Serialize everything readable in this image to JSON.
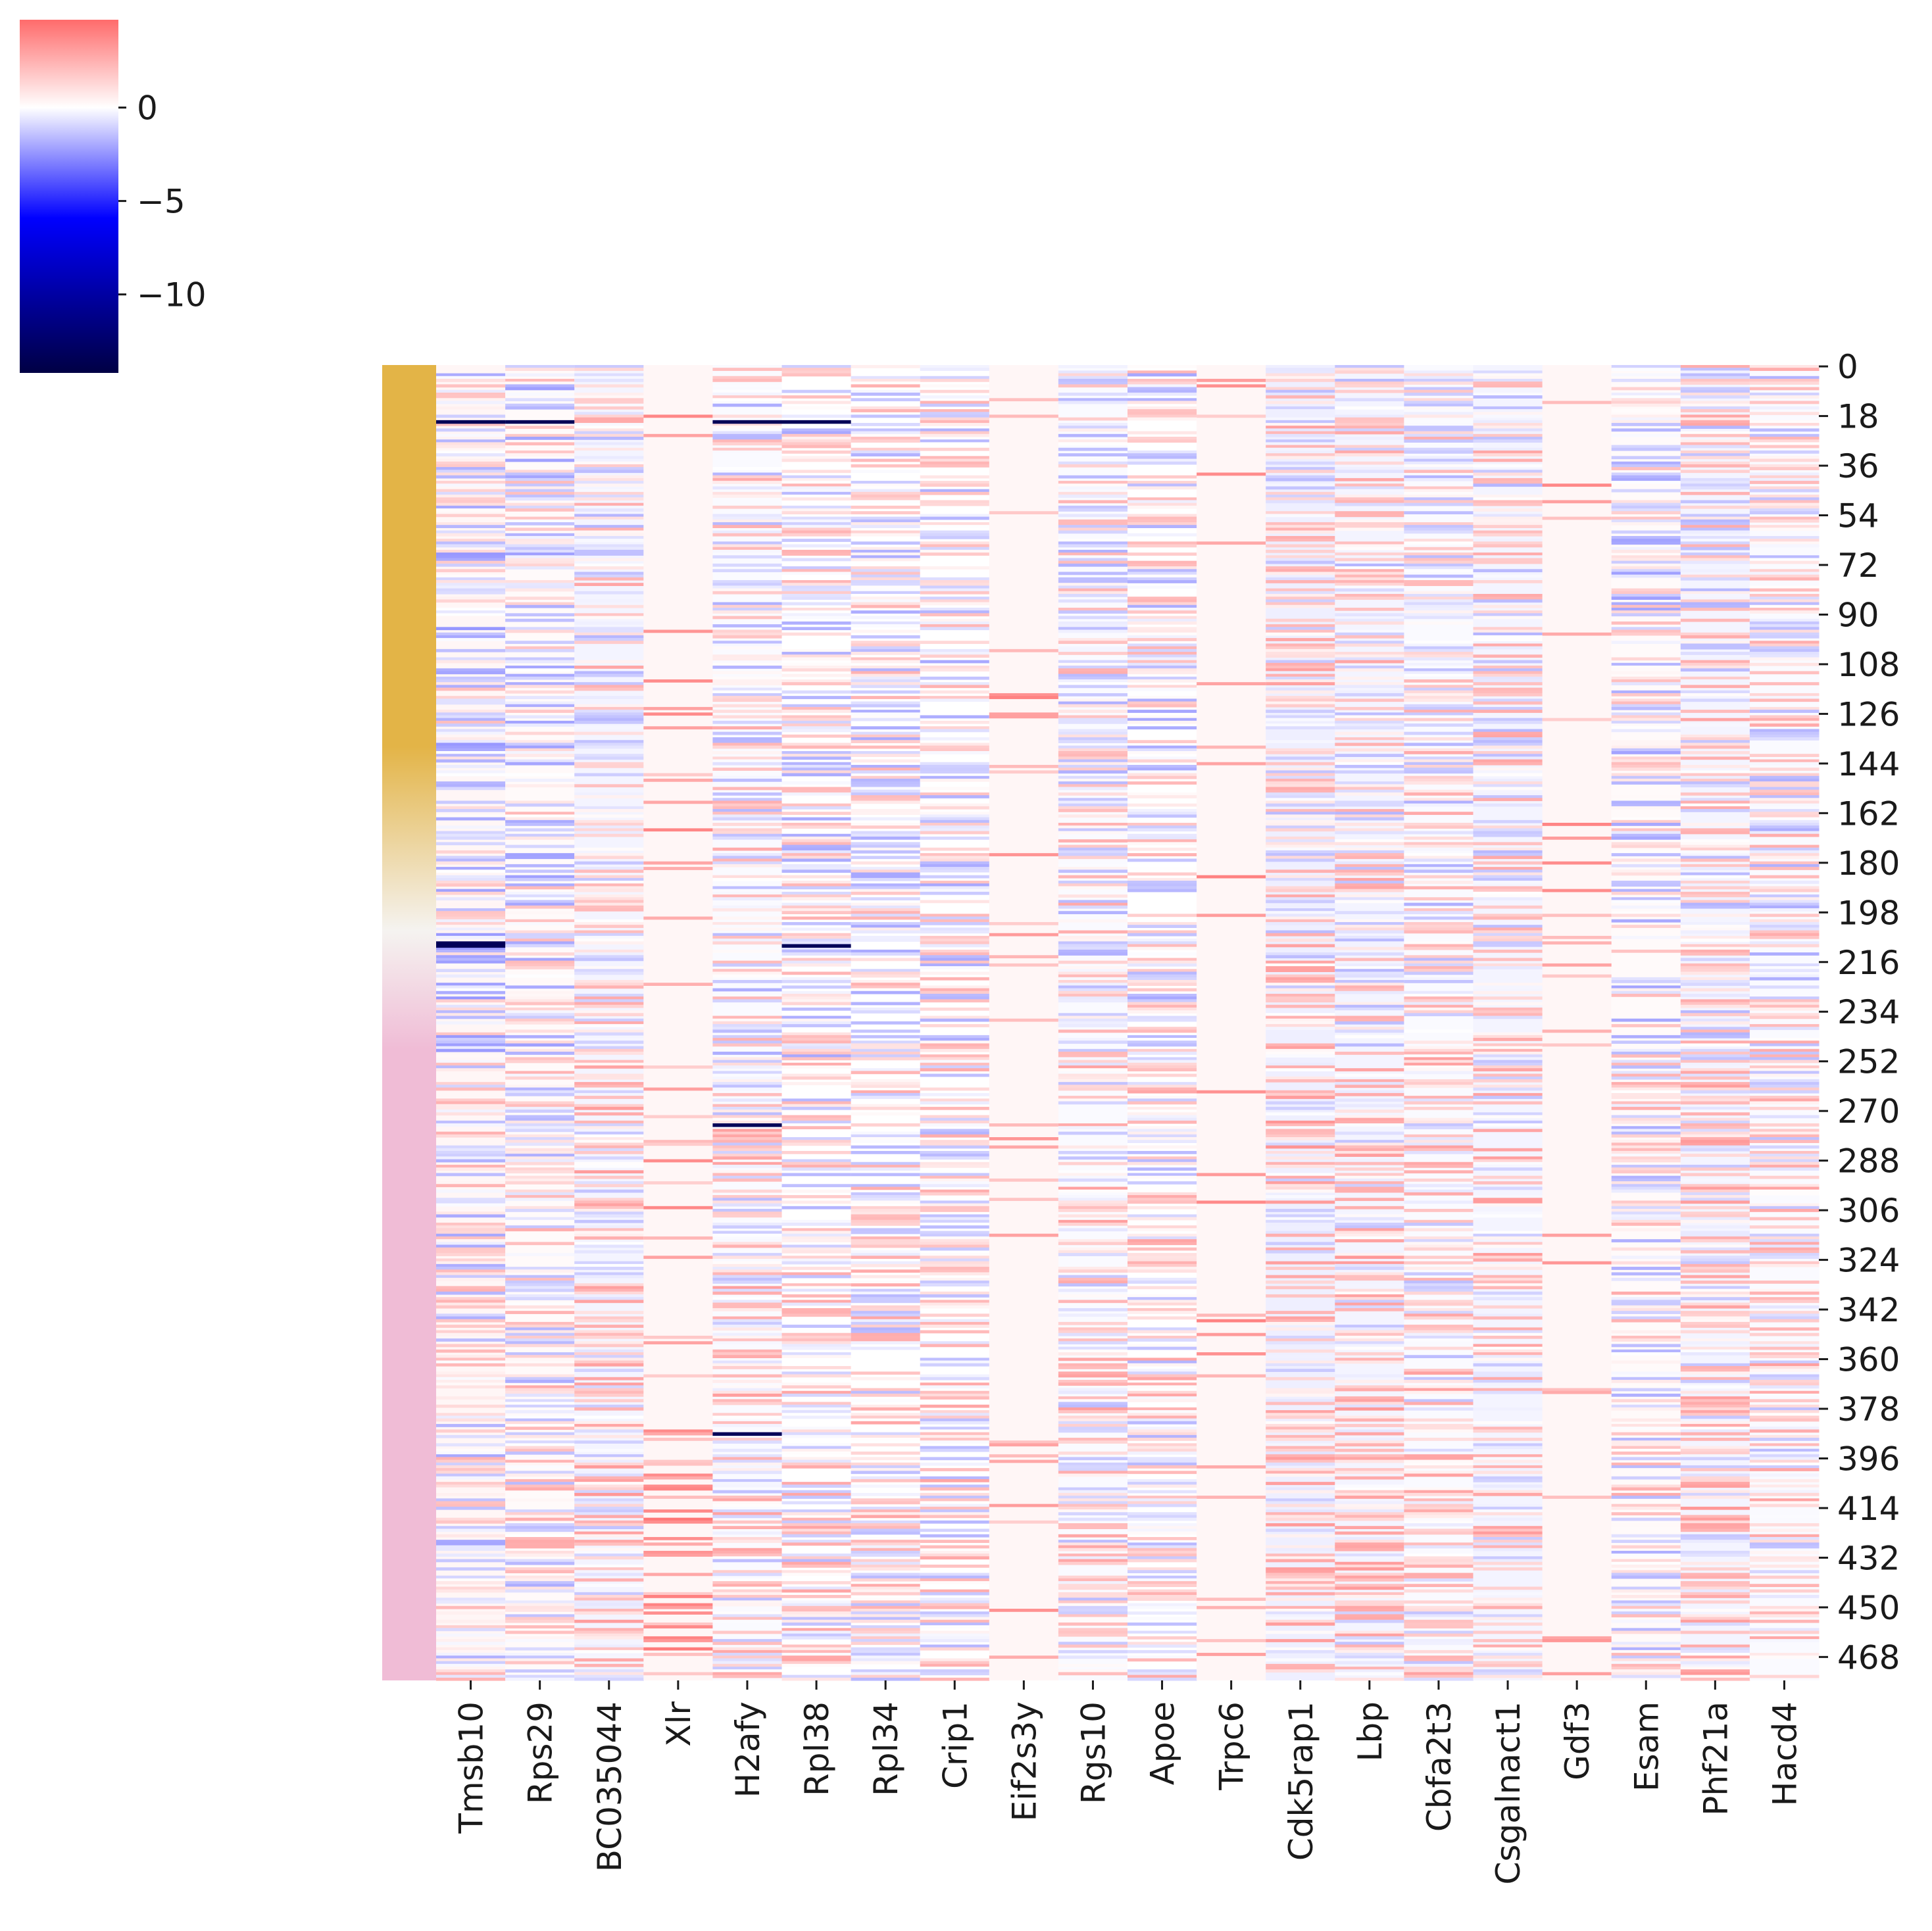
{
  "chart_data": {
    "type": "heatmap",
    "title": "",
    "xlabel": "",
    "ylabel": "",
    "columns": [
      "Tmsb10",
      "Rps29",
      "BC035044",
      "Xlr",
      "H2afy",
      "Rpl38",
      "Rpl34",
      "Crip1",
      "Eif2s3y",
      "Rgs10",
      "Apoe",
      "Trpc6",
      "Cdk5rap1",
      "Lbp",
      "Cbfa2t3",
      "Csgalnact1",
      "Gdf3",
      "Esam",
      "Phf21a",
      "Hacd4"
    ],
    "row_count": 477,
    "row_ticks": [
      "0",
      "18",
      "36",
      "54",
      "72",
      "90",
      "108",
      "126",
      "144",
      "162",
      "180",
      "198",
      "216",
      "234",
      "252",
      "270",
      "288",
      "306",
      "324",
      "342",
      "360",
      "378",
      "396",
      "414",
      "432",
      "450",
      "468"
    ],
    "row_tick_step": 18,
    "colorbar": {
      "vmin": -14.2,
      "vmax": 4.7,
      "center": 0,
      "ticks": [
        "0",
        "−5",
        "−10"
      ],
      "tick_values": [
        0,
        -5,
        -10
      ],
      "colormap": "seismic-like: dark navy (min) → blue → white (0) → light red (max)",
      "colors": {
        "min": "#000044",
        "blue": "#0000ff",
        "center": "#ffffff",
        "max": "#ff6b6b"
      }
    },
    "row_group_colors": {
      "description": "row annotation strip, gradient from gold (top) through white to pink (bottom)",
      "colors": [
        "#e3b447",
        "#f5f3f0",
        "#f0bcd6"
      ]
    },
    "cell_values": "dense 477x20 matrix; values mostly in [-3, 3], a few strong negatives down to about -14 (e.g. Tmsb10, Rps29, H2afy, Rpl38 near rows 20, 210, 275, 387)"
  }
}
